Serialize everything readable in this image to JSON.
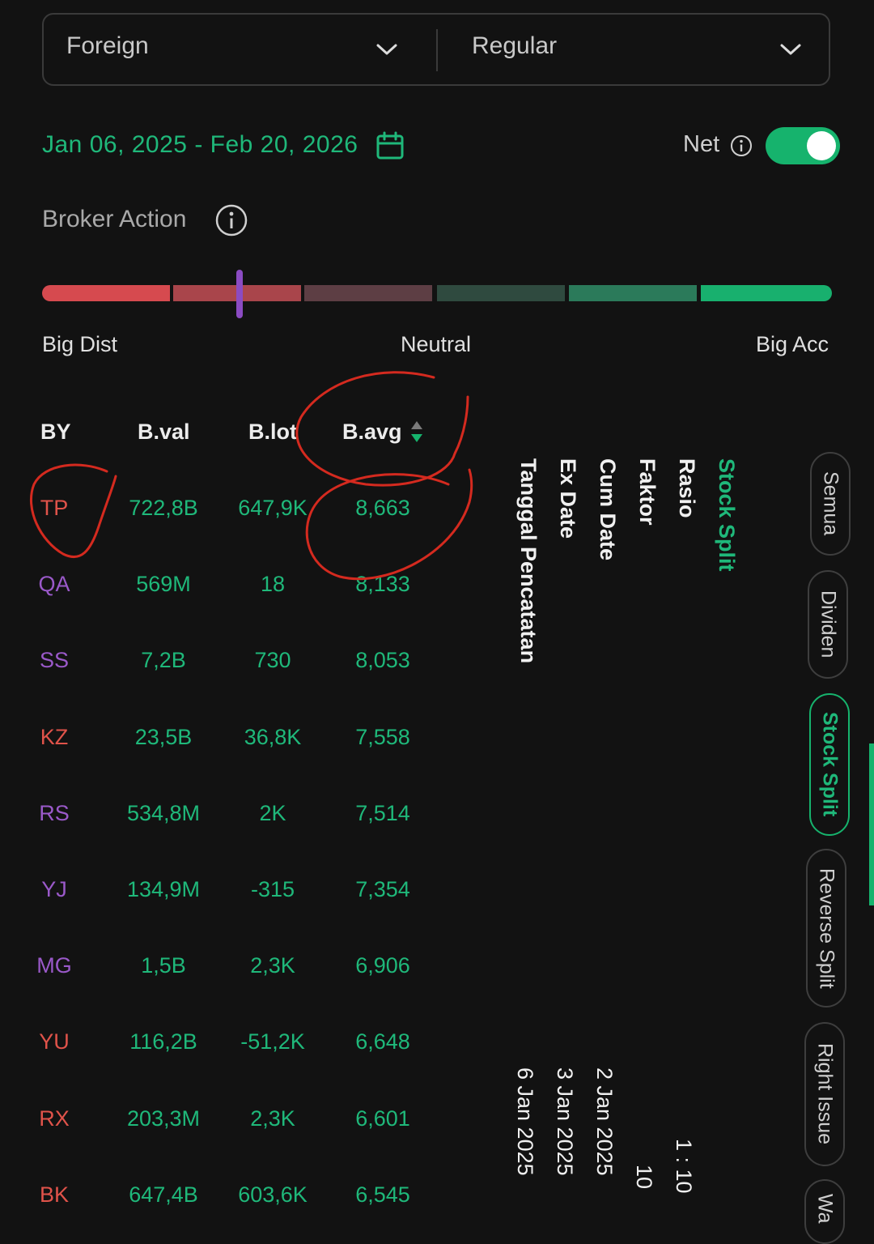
{
  "filters": {
    "investor_type": "Foreign",
    "market_type": "Regular"
  },
  "date_range": "Jan 06, 2025 - Feb 20, 2026",
  "net": {
    "label": "Net",
    "enabled": true
  },
  "broker_action": {
    "title": "Broker Action",
    "labels": {
      "left": "Big Dist",
      "center": "Neutral",
      "right": "Big Acc"
    },
    "segment_colors": [
      "#d64a4f",
      "#a9454b",
      "#5d3e44",
      "#2f4a3f",
      "#2b7a5a",
      "#18b06e"
    ],
    "marker_color": "#8b4bc2"
  },
  "table": {
    "headers": {
      "by": "BY",
      "bval": "B.val",
      "blot": "B.lot",
      "bavg": "B.avg"
    },
    "rows": [
      {
        "by": "TP",
        "by_color": "#e0534a",
        "bval": "722,8B",
        "blot": "647,9K",
        "bavg": "8,663"
      },
      {
        "by": "QA",
        "by_color": "#9a59c9",
        "bval": "569M",
        "blot": "18",
        "bavg": "8,133"
      },
      {
        "by": "SS",
        "by_color": "#9a59c9",
        "bval": "7,2B",
        "blot": "730",
        "bavg": "8,053"
      },
      {
        "by": "KZ",
        "by_color": "#e0534a",
        "bval": "23,5B",
        "blot": "36,8K",
        "bavg": "7,558"
      },
      {
        "by": "RS",
        "by_color": "#9a59c9",
        "bval": "534,8M",
        "blot": "2K",
        "bavg": "7,514"
      },
      {
        "by": "YJ",
        "by_color": "#9a59c9",
        "bval": "134,9M",
        "blot": "-315",
        "bavg": "7,354"
      },
      {
        "by": "MG",
        "by_color": "#9a59c9",
        "bval": "1,5B",
        "blot": "2,3K",
        "bavg": "6,906"
      },
      {
        "by": "YU",
        "by_color": "#e0534a",
        "bval": "116,2B",
        "blot": "-51,2K",
        "bavg": "6,648"
      },
      {
        "by": "RX",
        "by_color": "#e0534a",
        "bval": "203,3M",
        "blot": "2,3K",
        "bavg": "6,601"
      },
      {
        "by": "BK",
        "by_color": "#e0534a",
        "bval": "647,4B",
        "blot": "603,6K",
        "bavg": "6,545"
      }
    ]
  },
  "corporate_action": {
    "title": "Stock Split",
    "fields": [
      "Rasio",
      "Faktor",
      "Cum Date",
      "Ex Date",
      "Tanggal Pencatatan"
    ],
    "values": {
      "rasio": "1 : 10",
      "faktor": "10",
      "cum_date": "2 Jan 2025",
      "ex_date": "3 Jan 2025",
      "tanggal_pencatatan": "6 Jan 2025"
    }
  },
  "tabs": [
    "Semua",
    "Dividen",
    "Stock Split",
    "Reverse Split",
    "Right Issue",
    "Wa"
  ],
  "active_tab": "Stock Split",
  "colors": {
    "accent": "#16b36d",
    "positive_text": "#1fb87a",
    "annotation": "#d42a1f"
  }
}
